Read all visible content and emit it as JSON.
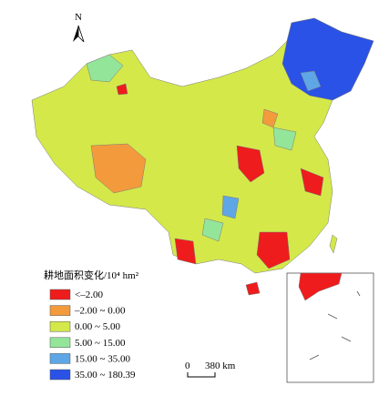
{
  "north_label": "N",
  "legend": {
    "title": "耕地面积变化/10⁴ hm²",
    "items": [
      {
        "label": "<–2.00",
        "color": "#ee1c1c"
      },
      {
        "label": "–2.00 ~ 0.00",
        "color": "#f39a3c"
      },
      {
        "label": "0.00 ~ 5.00",
        "color": "#d4e84a"
      },
      {
        "label": "5.00 ~ 15.00",
        "color": "#93e59a"
      },
      {
        "label": "15.00 ~ 35.00",
        "color": "#5ea6e6"
      },
      {
        "label": "35.00 ~ 180.39",
        "color": "#2a52e6"
      }
    ]
  },
  "scale_bar": {
    "start": "0",
    "end": "380 km"
  }
}
